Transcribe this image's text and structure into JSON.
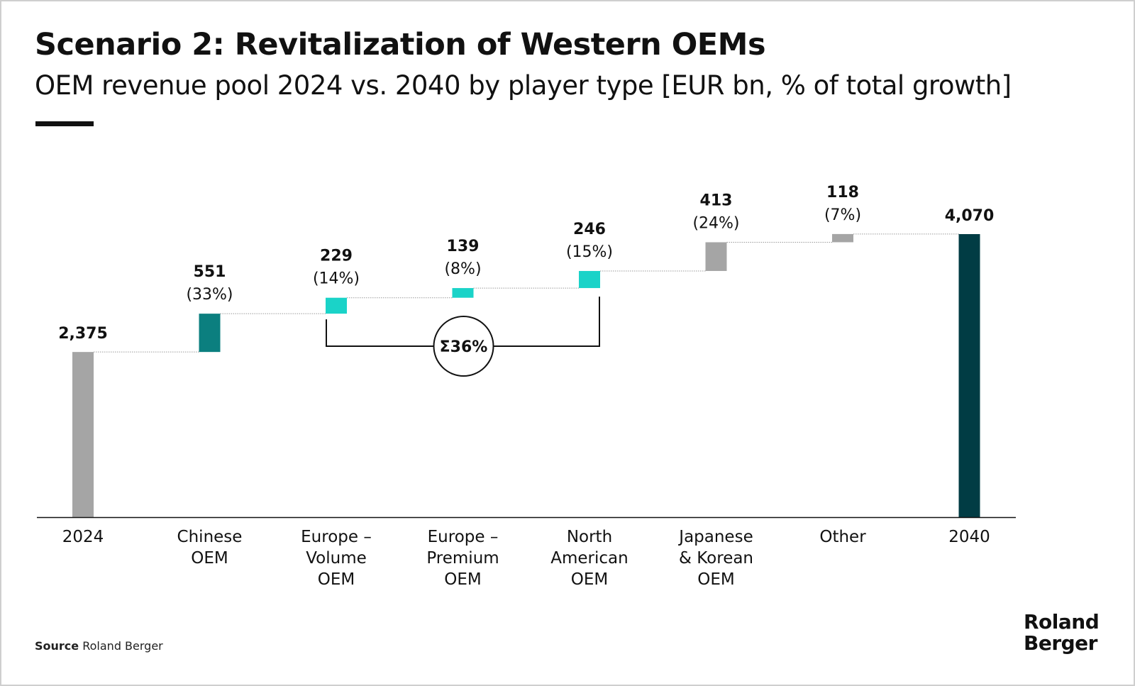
{
  "header": {
    "title": "Scenario 2: Revitalization of Western OEMs",
    "subtitle": "OEM revenue pool 2024 vs. 2040 by player type [EUR bn, % of total growth]"
  },
  "footer": {
    "source_label": "Source",
    "source_text": "Roland Berger",
    "logo_line1": "Roland",
    "logo_line2": "Berger"
  },
  "chart_data": {
    "type": "waterfall",
    "categories": [
      [
        "2024"
      ],
      [
        "Chinese",
        "OEM"
      ],
      [
        "Europe –",
        "Volume",
        "OEM"
      ],
      [
        "Europe –",
        "Premium",
        "OEM"
      ],
      [
        "North",
        "American",
        "OEM"
      ],
      [
        "Japanese",
        "& Korean",
        "OEM"
      ],
      [
        "Other"
      ],
      [
        "2040"
      ]
    ],
    "values": [
      2375,
      551,
      229,
      139,
      246,
      413,
      118,
      4070
    ],
    "kinds": [
      "total",
      "delta",
      "delta",
      "delta",
      "delta",
      "delta",
      "delta",
      "total"
    ],
    "value_labels": [
      "2,375",
      "551",
      "229",
      "139",
      "246",
      "413",
      "118",
      "4,070"
    ],
    "share_labels": [
      "",
      "(33%)",
      "(14%)",
      "(8%)",
      "(15%)",
      "(24%)",
      "(7%)",
      ""
    ],
    "colors": [
      "#a5a5a5",
      "#0b7f7f",
      "#1ad3c8",
      "#1ad3c8",
      "#1ad3c8",
      "#a5a5a5",
      "#a5a5a5",
      "#013c44"
    ],
    "bracket": {
      "from_index": 2,
      "to_index": 4,
      "label": "Σ36%"
    },
    "connector_color": "#9a9a9a",
    "axis_color": "#111111"
  }
}
